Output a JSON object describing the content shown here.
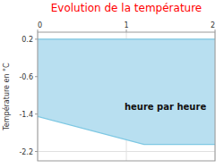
{
  "chart_data": {
    "type": "area",
    "title": "Evolution de la température",
    "title_color": "#ff0000",
    "ylabel": "Température en °C",
    "xlabel": "heure par heure",
    "x": [
      0,
      1.2,
      2.0
    ],
    "series": [
      {
        "values": [
          -1.45,
          -2.05,
          -2.05
        ],
        "color": "#7ec8e3",
        "fill_color": "#b8dff0"
      }
    ],
    "top": 0.2,
    "xlim": [
      0,
      2.0
    ],
    "ylim": [
      -2.4,
      0.35
    ],
    "xticks": [
      0,
      1,
      2
    ],
    "yticks": [
      0.2,
      -0.6,
      -1.4,
      -2.2
    ],
    "grid": true
  }
}
